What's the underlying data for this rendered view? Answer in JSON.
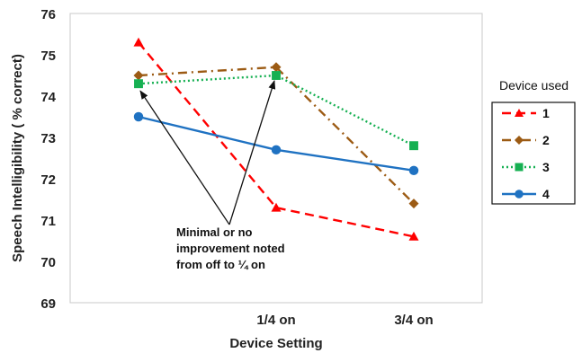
{
  "chart_data": {
    "type": "line",
    "title": "",
    "xlabel": "Device Setting",
    "ylabel": "Speech Intelligibility ( % correct)",
    "categories": [
      "",
      "1/4 on",
      "3/4 on"
    ],
    "ylim": [
      69,
      76
    ],
    "yticks": [
      69,
      70,
      71,
      72,
      73,
      74,
      75,
      76
    ],
    "grid": false,
    "legend": {
      "title": "Device used",
      "placement": "right"
    },
    "series": [
      {
        "name": "1",
        "values": [
          75.3,
          71.3,
          70.6
        ],
        "color": "#ff0000",
        "marker": "triangle",
        "dash": "dashed"
      },
      {
        "name": "2",
        "values": [
          74.5,
          74.7,
          71.4
        ],
        "color": "#9c5b14",
        "marker": "diamond",
        "dash": "dashdot"
      },
      {
        "name": "3",
        "values": [
          74.3,
          74.5,
          72.8
        ],
        "color": "#16b052",
        "marker": "square",
        "dash": "dotted"
      },
      {
        "name": "4",
        "values": [
          73.5,
          72.7,
          72.2
        ],
        "color": "#1f72c2",
        "marker": "circle",
        "dash": "solid"
      }
    ],
    "annotation": {
      "lines": [
        "Minimal or no",
        "improvement noted",
        "from off to ¼ on"
      ]
    }
  }
}
